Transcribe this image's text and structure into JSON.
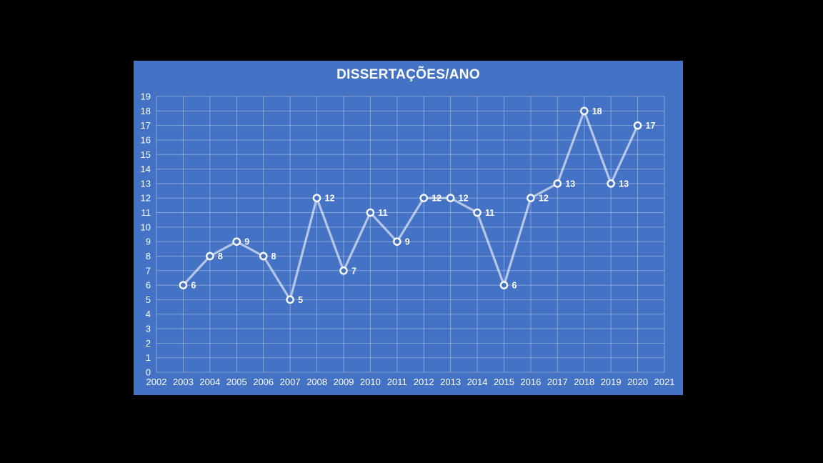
{
  "page": {
    "background": "#000000"
  },
  "panel": {
    "background": "#4472C4"
  },
  "chart_data": {
    "type": "line",
    "title": "DISSERTAÇÕES/ANO",
    "x": [
      2003,
      2004,
      2005,
      2006,
      2007,
      2008,
      2009,
      2010,
      2011,
      2012,
      2013,
      2014,
      2015,
      2016,
      2017,
      2018,
      2019,
      2020
    ],
    "values": [
      6,
      8,
      9,
      8,
      5,
      12,
      7,
      11,
      9,
      12,
      12,
      11,
      6,
      12,
      13,
      18,
      13,
      17
    ],
    "x_axis_categories": [
      "2002",
      "2003",
      "2004",
      "2005",
      "2006",
      "2007",
      "2008",
      "2009",
      "2010",
      "2011",
      "2012",
      "2013",
      "2014",
      "2015",
      "2016",
      "2017",
      "2018",
      "2019",
      "2020",
      "2021"
    ],
    "y_ticks": [
      0,
      1,
      2,
      3,
      4,
      5,
      6,
      7,
      8,
      9,
      10,
      11,
      12,
      13,
      14,
      15,
      16,
      17,
      18,
      19
    ],
    "ylim": [
      0,
      19
    ],
    "xlabel": "",
    "ylabel": "",
    "grid": true,
    "legend": "none",
    "data_labels": "right-of-marker"
  },
  "colors": {
    "plot_background": "#4472C4",
    "line": "rgba(255,255,255,0.6)",
    "marker_fill": "#4472C4",
    "marker_stroke": "#ffffff",
    "gridline": "rgba(255,255,255,0.35)",
    "axis_text": "#ffffff",
    "label_text": "#ffffff",
    "title_text": "#ffffff"
  }
}
